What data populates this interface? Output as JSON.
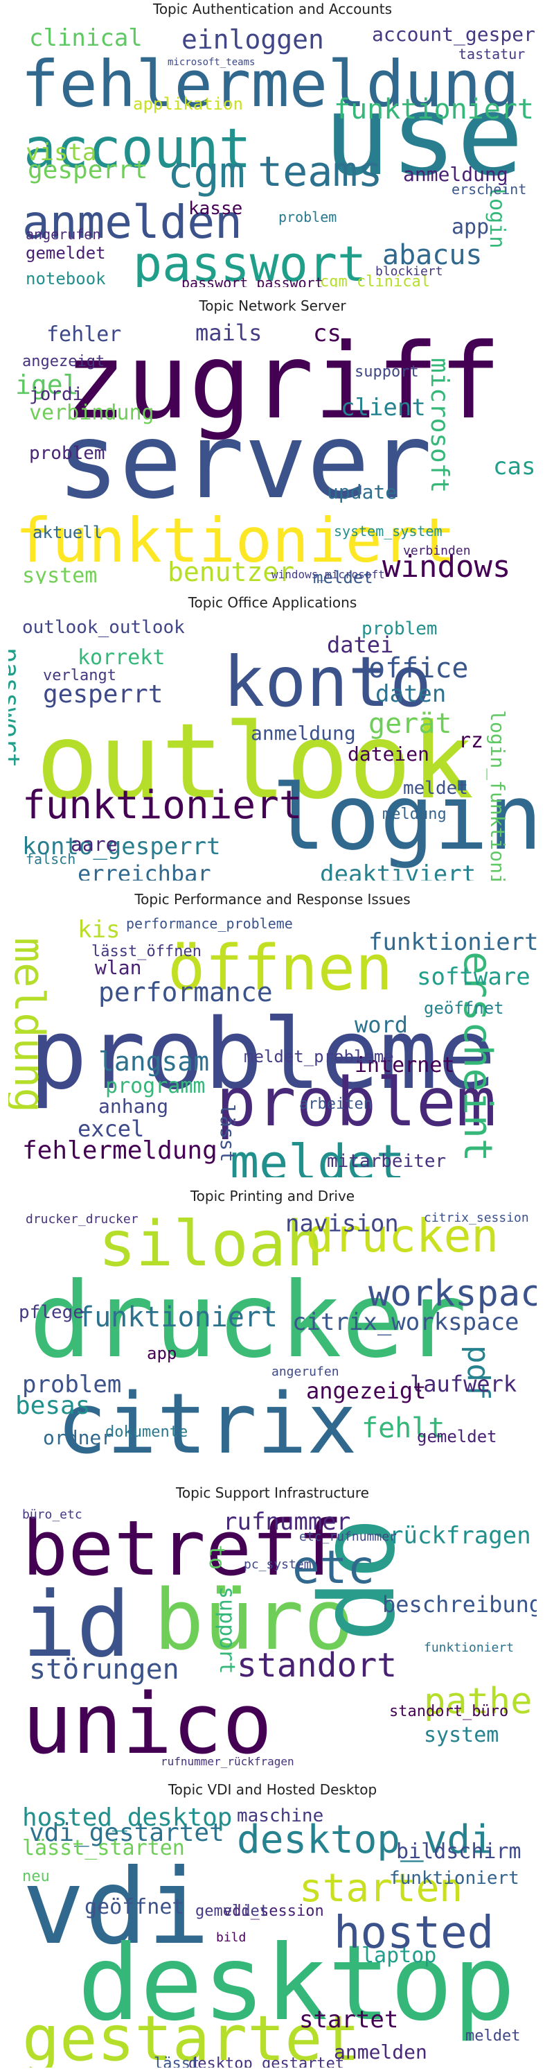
{
  "panels": [
    {
      "title": "Topic Authentication and Accounts",
      "words": [
        {
          "text": "fehlermeldung",
          "color": "#31688e"
        },
        {
          "text": "user",
          "color": "#287d8e"
        },
        {
          "text": "account",
          "color": "#21908d"
        },
        {
          "text": "passwort",
          "color": "#1f9e89"
        },
        {
          "text": "anmelden",
          "color": "#3b528b"
        },
        {
          "text": "teams",
          "color": "#2c728e"
        },
        {
          "text": "cgm",
          "color": "#287d8e"
        },
        {
          "text": "einloggen",
          "color": "#404688"
        },
        {
          "text": "funktioniert",
          "color": "#35b779"
        },
        {
          "text": "abacus",
          "color": "#31688e"
        },
        {
          "text": "gesperrt",
          "color": "#6ece58"
        },
        {
          "text": "vista",
          "color": "#90d743"
        },
        {
          "text": "clinical",
          "color": "#5ec962"
        },
        {
          "text": "account_gesperrt",
          "color": "#443983"
        },
        {
          "text": "anmeldung",
          "color": "#482173"
        },
        {
          "text": "login",
          "color": "#35b779"
        },
        {
          "text": "kasse",
          "color": "#440154"
        },
        {
          "text": "app",
          "color": "#3b528b"
        },
        {
          "text": "notebook",
          "color": "#21908d"
        },
        {
          "text": "gemeldet",
          "color": "#481f70"
        },
        {
          "text": "angerufen",
          "color": "#482878"
        },
        {
          "text": "cgm_clinical",
          "color": "#b5de2b"
        },
        {
          "text": "passwort_passwort",
          "color": "#440154"
        },
        {
          "text": "tastatur",
          "color": "#443983"
        },
        {
          "text": "applikation",
          "color": "#c8e020"
        },
        {
          "text": "problem",
          "color": "#2a788e"
        },
        {
          "text": "erscheint",
          "color": "#39568c"
        },
        {
          "text": "blockiert",
          "color": "#453781"
        },
        {
          "text": "microsoft_teams",
          "color": "#3e4989"
        }
      ]
    },
    {
      "title": "Topic Network Server",
      "words": [
        {
          "text": "zugriff",
          "color": "#440154"
        },
        {
          "text": "server",
          "color": "#3b528b"
        },
        {
          "text": "funktioniert",
          "color": "#fde725"
        },
        {
          "text": "windows",
          "color": "#440154"
        },
        {
          "text": "benutzer",
          "color": "#b5de2b"
        },
        {
          "text": "system",
          "color": "#73d056"
        },
        {
          "text": "microsoft",
          "color": "#35b779"
        },
        {
          "text": "verbindung",
          "color": "#6ece58"
        },
        {
          "text": "mails",
          "color": "#433e85"
        },
        {
          "text": "igel",
          "color": "#5ec962"
        },
        {
          "text": "jordi",
          "color": "#482878"
        },
        {
          "text": "fehler",
          "color": "#3e4989"
        },
        {
          "text": "client",
          "color": "#26828e"
        },
        {
          "text": "update",
          "color": "#2e6e8e"
        },
        {
          "text": "aktuell",
          "color": "#31688e"
        },
        {
          "text": "case",
          "color": "#1f9e89"
        },
        {
          "text": "problem",
          "color": "#482475"
        },
        {
          "text": "angezeigt",
          "color": "#46327e"
        },
        {
          "text": "cs",
          "color": "#440154"
        },
        {
          "text": "meldet",
          "color": "#38598c"
        },
        {
          "text": "support",
          "color": "#3f4788"
        },
        {
          "text": "windows_microsoft",
          "color": "#433e85"
        },
        {
          "text": "system_system",
          "color": "#21908d"
        },
        {
          "text": "verbinden",
          "color": "#482071"
        }
      ]
    },
    {
      "title": "Topic Office Applications",
      "words": [
        {
          "text": "outlook",
          "color": "#b5de2b"
        },
        {
          "text": "konto",
          "color": "#3b528b"
        },
        {
          "text": "login",
          "color": "#31688e"
        },
        {
          "text": "funktioniert",
          "color": "#440154"
        },
        {
          "text": "office",
          "color": "#39568c"
        },
        {
          "text": "gesperrt",
          "color": "#3e4989"
        },
        {
          "text": "passwort",
          "color": "#1f9e89"
        },
        {
          "text": "konto_gesperrt",
          "color": "#287d8e"
        },
        {
          "text": "datei",
          "color": "#482878"
        },
        {
          "text": "korrekt",
          "color": "#35b779"
        },
        {
          "text": "problem",
          "color": "#21908d"
        },
        {
          "text": "daten",
          "color": "#2c728e"
        },
        {
          "text": "gerät",
          "color": "#6ece58"
        },
        {
          "text": "anmeldung",
          "color": "#3b528b"
        },
        {
          "text": "aare",
          "color": "#482173"
        },
        {
          "text": "erreichbar",
          "color": "#31688e"
        },
        {
          "text": "deaktiviert",
          "color": "#26828e"
        },
        {
          "text": "meldet",
          "color": "#3b528b"
        },
        {
          "text": "dateien",
          "color": "#440154"
        },
        {
          "text": "outlook_outlook",
          "color": "#404688"
        },
        {
          "text": "verlangt",
          "color": "#453781"
        },
        {
          "text": "login_funktioniert",
          "color": "#5ec962"
        },
        {
          "text": "falsch",
          "color": "#2a788e"
        },
        {
          "text": "meldung",
          "color": "#33638d"
        },
        {
          "text": "rz",
          "color": "#440154"
        }
      ]
    },
    {
      "title": "Topic Performance and Response Issues",
      "words": [
        {
          "text": "probleme",
          "color": "#3e4989"
        },
        {
          "text": "öffnen",
          "color": "#c2df23"
        },
        {
          "text": "problem",
          "color": "#482878"
        },
        {
          "text": "meldet",
          "color": "#21908d"
        },
        {
          "text": "erscheint",
          "color": "#35b779"
        },
        {
          "text": "meldung",
          "color": "#b5de2b"
        },
        {
          "text": "performance",
          "color": "#3b528b"
        },
        {
          "text": "langsam",
          "color": "#2c728e"
        },
        {
          "text": "fehlermeldung",
          "color": "#440154"
        },
        {
          "text": "excel",
          "color": "#3e4989"
        },
        {
          "text": "word",
          "color": "#2c728e"
        },
        {
          "text": "software",
          "color": "#1f9e89"
        },
        {
          "text": "funktioniert",
          "color": "#31688e"
        },
        {
          "text": "internet",
          "color": "#440154"
        },
        {
          "text": "programm",
          "color": "#35b779"
        },
        {
          "text": "anhang",
          "color": "#404688"
        },
        {
          "text": "wlan",
          "color": "#482173"
        },
        {
          "text": "mitarbeiter",
          "color": "#46327e"
        },
        {
          "text": "kis",
          "color": "#b8de29"
        },
        {
          "text": "lässt",
          "color": "#3b528b"
        },
        {
          "text": "geöffnet",
          "color": "#26828e"
        },
        {
          "text": "arbeiten",
          "color": "#39568c"
        },
        {
          "text": "meldet_probleme",
          "color": "#433e85"
        },
        {
          "text": "performance_probleme",
          "color": "#3b528b"
        },
        {
          "text": "lässt_öffnen",
          "color": "#453781"
        }
      ]
    },
    {
      "title": "Topic Printing and Drive",
      "words": [
        {
          "text": "drucker",
          "color": "#3bbb75"
        },
        {
          "text": "citrix",
          "color": "#31688e"
        },
        {
          "text": "siloah",
          "color": "#b5de2b"
        },
        {
          "text": "drucken",
          "color": "#c8e020"
        },
        {
          "text": "workspace",
          "color": "#3b528b"
        },
        {
          "text": "funktioniert",
          "color": "#2c728e"
        },
        {
          "text": "navision",
          "color": "#404688"
        },
        {
          "text": "citrix_workspace",
          "color": "#39568c"
        },
        {
          "text": "pdf",
          "color": "#26828e"
        },
        {
          "text": "laufwerk",
          "color": "#482878"
        },
        {
          "text": "angezeigt",
          "color": "#440154"
        },
        {
          "text": "besas",
          "color": "#21908d"
        },
        {
          "text": "problem",
          "color": "#3b528b"
        },
        {
          "text": "fehlt",
          "color": "#35b779"
        },
        {
          "text": "ordner",
          "color": "#31688e"
        },
        {
          "text": "pflege",
          "color": "#443983"
        },
        {
          "text": "gemeldet",
          "color": "#482173"
        },
        {
          "text": "app",
          "color": "#440154"
        },
        {
          "text": "drucker_drucker",
          "color": "#46327e"
        },
        {
          "text": "dokumente",
          "color": "#2a788e"
        },
        {
          "text": "angerufen",
          "color": "#3e4989"
        },
        {
          "text": "citrix_session",
          "color": "#3b528b"
        }
      ]
    },
    {
      "title": "Topic Support Infrastructure",
      "words": [
        {
          "text": "unico",
          "color": "#440154"
        },
        {
          "text": "betreff",
          "color": "#440154"
        },
        {
          "text": "büro",
          "color": "#6ece58"
        },
        {
          "text": "id",
          "color": "#3b528b"
        },
        {
          "text": "op",
          "color": "#2a9c8c"
        },
        {
          "text": "etc",
          "color": "#31688e"
        },
        {
          "text": "pathe",
          "color": "#b5de2b"
        },
        {
          "text": "standort",
          "color": "#482173"
        },
        {
          "text": "störungen",
          "color": "#3b528b"
        },
        {
          "text": "rückfragen",
          "color": "#21908d"
        },
        {
          "text": "rufnummer",
          "color": "#482878"
        },
        {
          "text": "beschreibung",
          "color": "#39568c"
        },
        {
          "text": "system",
          "color": "#26828e"
        },
        {
          "text": "support",
          "color": "#35b779"
        },
        {
          "text": "standort_büro",
          "color": "#440154"
        },
        {
          "text": "etc_rufnummer",
          "color": "#3e4989"
        },
        {
          "text": "büro_etc",
          "color": "#453781"
        },
        {
          "text": "pc_system",
          "color": "#404688"
        },
        {
          "text": "to",
          "color": "#5ec962"
        },
        {
          "text": "funktioniert",
          "color": "#2c728e"
        },
        {
          "text": "rufnummer_rückfragen",
          "color": "#46327e"
        }
      ]
    },
    {
      "title": "Topic VDI and Hosted Desktop",
      "words": [
        {
          "text": "vdi",
          "color": "#31688e"
        },
        {
          "text": "desktop",
          "color": "#35b779"
        },
        {
          "text": "hosted",
          "color": "#3b528b"
        },
        {
          "text": "gestartet",
          "color": "#b5de2b"
        },
        {
          "text": "starten",
          "color": "#c8e020"
        },
        {
          "text": "vdi_gestartet",
          "color": "#2c728e"
        },
        {
          "text": "hosted_desktop",
          "color": "#21908d"
        },
        {
          "text": "desktop_vdi",
          "color": "#26828e"
        },
        {
          "text": "bildschirm",
          "color": "#3e4989"
        },
        {
          "text": "laptop",
          "color": "#1f9e89"
        },
        {
          "text": "lässt_starten",
          "color": "#6ece58"
        },
        {
          "text": "startet",
          "color": "#440154"
        },
        {
          "text": "anmelden",
          "color": "#482878"
        },
        {
          "text": "geöffnet",
          "color": "#3b528b"
        },
        {
          "text": "maschine",
          "color": "#453781"
        },
        {
          "text": "funktioniert",
          "color": "#33638d"
        },
        {
          "text": "meldet",
          "color": "#404688"
        },
        {
          "text": "vdi_session",
          "color": "#482173"
        },
        {
          "text": "desktop_gestartet",
          "color": "#46327e"
        },
        {
          "text": "neu",
          "color": "#5ec962"
        },
        {
          "text": "lässt",
          "color": "#39568c"
        },
        {
          "text": "gemeldet",
          "color": "#443983"
        },
        {
          "text": "bild",
          "color": "#440154"
        }
      ]
    }
  ]
}
